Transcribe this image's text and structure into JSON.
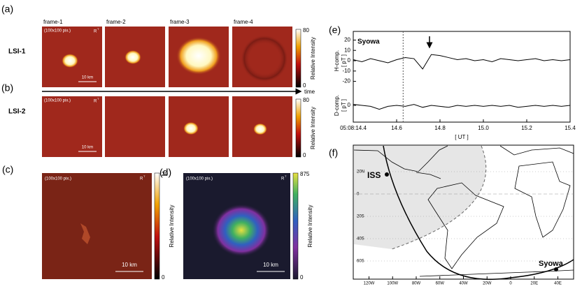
{
  "panel_labels": [
    "(a)",
    "(b)",
    "(c)",
    "(d)",
    "(e)",
    "(f)"
  ],
  "panel_a": {
    "row_label": "LSI-1",
    "frames": [
      "frame-1",
      "frame-2",
      "frame-3",
      "frame-4"
    ],
    "pixel_note": "(100x100 pix.)",
    "rt": "R",
    "rt_sup": "T",
    "scale": "10 km",
    "colorbar": {
      "label": "Relative Intensity",
      "ticks": [
        80,
        0
      ]
    }
  },
  "time_label": "time",
  "panel_b": {
    "row_label": "LSI-2",
    "pixel_note": "(100x100 pix.)",
    "rt": "R",
    "rt_sup": "T",
    "scale": "10 km",
    "colorbar": {
      "label": "Relative Intensity",
      "ticks": [
        80,
        0
      ]
    }
  },
  "panel_c": {
    "pixel_note": "(100x100 pix.)",
    "rt": "R",
    "rt_sup": "T",
    "scale": "10 km",
    "colorbar": {
      "label": "Relative Intensity",
      "ticks": [
        20,
        0
      ]
    }
  },
  "panel_d": {
    "pixel_note": "(100x100 pix.)",
    "rt": "R",
    "rt_sup": "T",
    "scale": "10 km",
    "colorbar": {
      "label": "Relative Intensity",
      "ticks": [
        875,
        0
      ]
    }
  },
  "chart_data": [
    {
      "type": "line",
      "title": "Syowa",
      "ylabel": "H-comp.",
      "yunit": "[ pT ]",
      "xlabel": "[ UT ]",
      "x": [
        14.4,
        14.44,
        14.48,
        14.52,
        14.56,
        14.6,
        14.64,
        14.68,
        14.72,
        14.76,
        14.8,
        14.84,
        14.88,
        14.92,
        14.96,
        15.0,
        15.04,
        15.08,
        15.12,
        15.16,
        15.2,
        15.24,
        15.28,
        15.32,
        15.36,
        15.4
      ],
      "values": [
        1,
        -1,
        2,
        0,
        -2,
        1,
        3,
        2,
        -8,
        6,
        5,
        3,
        1,
        2,
        0,
        1,
        -1,
        2,
        1,
        0,
        1,
        2,
        0,
        1,
        0,
        1
      ],
      "color": "#000000",
      "event_x": 14.63,
      "xlim": [
        14.4,
        15.4
      ],
      "xticks": [
        {
          "value": 14.4,
          "label": "05:08:14.4"
        },
        14.6,
        14.8,
        {
          "value": 15.0,
          "label": "15.0"
        },
        15.2,
        15.4
      ],
      "ylim": [
        -25,
        25
      ],
      "yticks": [
        20,
        10,
        0,
        -10,
        -20
      ]
    },
    {
      "type": "line",
      "ylabel": "D-comp.",
      "yunit": "[ pT ]",
      "x": [
        14.4,
        14.44,
        14.48,
        14.52,
        14.56,
        14.6,
        14.64,
        14.68,
        14.72,
        14.76,
        14.8,
        14.84,
        14.88,
        14.92,
        14.96,
        15.0,
        15.04,
        15.08,
        15.12,
        15.16,
        15.2,
        15.24,
        15.28,
        15.32,
        15.36,
        15.4
      ],
      "values": [
        1,
        0,
        -1,
        -4,
        -1,
        0,
        -1,
        1,
        -2,
        0,
        -1,
        -2,
        0,
        -1,
        0,
        -1,
        0,
        -1,
        0,
        -2,
        -1,
        0,
        -1,
        0,
        -1,
        0
      ],
      "color": "#000000",
      "xlim": [
        14.4,
        15.4
      ],
      "ylim": [
        -15,
        15
      ],
      "yticks": [
        0
      ]
    }
  ],
  "panel_f": {
    "iss": "ISS",
    "syowa": "Syowa",
    "lat_ticks": [
      {
        "value": 20,
        "label": "20N"
      },
      0,
      {
        "value": -20,
        "label": "20S"
      },
      {
        "value": -40,
        "label": "40S"
      },
      {
        "value": -60,
        "label": "60S"
      }
    ],
    "lon_ticks": [
      {
        "value": -120,
        "label": "120W"
      },
      {
        "value": -100,
        "label": "100W"
      },
      {
        "value": -80,
        "label": "80W"
      },
      {
        "value": -60,
        "label": "60W"
      },
      {
        "value": -40,
        "label": "40W"
      },
      {
        "value": -20,
        "label": "20W"
      },
      0,
      {
        "value": 20,
        "label": "20E"
      },
      {
        "value": 40,
        "label": "40E"
      }
    ]
  }
}
